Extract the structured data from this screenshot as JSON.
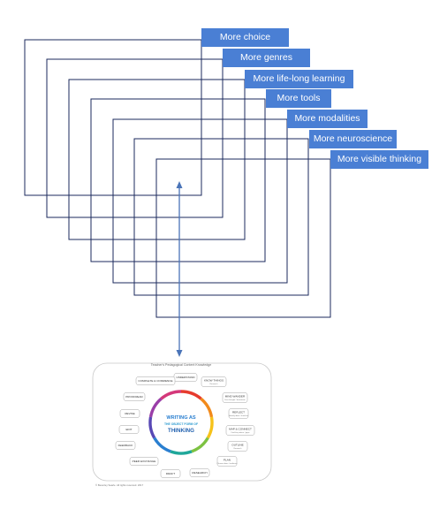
{
  "layers": [
    {
      "label": "More choice"
    },
    {
      "label": "More genres"
    },
    {
      "label": "More life-long learning"
    },
    {
      "label": "More tools"
    },
    {
      "label": "More modalities"
    },
    {
      "label": "More neuroscience"
    },
    {
      "label": "More visible thinking"
    }
  ],
  "colors": {
    "label_fill": "#4a7fd4",
    "label_text": "#ffffff",
    "frame_stroke": "#1b2a5c",
    "arrow": "#4a74b8",
    "card_border": "#c9c9c9",
    "node_border": "#a3a3a3"
  },
  "figure": {
    "title": "Teacher's Pedagogical Content Knowledge",
    "center_lines": [
      "WRITING AS",
      "THE OBJECT FORM OF",
      "THINKING"
    ],
    "nodes": [
      {
        "label": "UNDERSTAND",
        "sub": ""
      },
      {
        "label": "KNOW THINGS",
        "sub": "Research"
      },
      {
        "label": "MIND WANDER",
        "sub": "Free thought / brainstorm"
      },
      {
        "label": "REFLECT",
        "sub": "Identify ideas / hunches"
      },
      {
        "label": "MAP & CONNECT",
        "sub": "Find the pattern / gaps"
      },
      {
        "label": "OUTLINE",
        "sub": "Research"
      },
      {
        "label": "PLAN",
        "sub": "Choose ideas / audience"
      },
      {
        "label": "RESEARCH",
        "sub": ""
      },
      {
        "label": "DRAFT",
        "sub": ""
      },
      {
        "label": "PEER EXCHANGE",
        "sub": ""
      },
      {
        "label": "FEEDBACK",
        "sub": ""
      },
      {
        "label": "EDIT",
        "sub": ""
      },
      {
        "label": "REVISE",
        "sub": ""
      },
      {
        "label": "PROOFREAD",
        "sub": ""
      },
      {
        "label": "COMPLETE & COMMENCE",
        "sub": ""
      }
    ],
    "footer": "© Beverley Searle. All rights reserved. 2017"
  }
}
